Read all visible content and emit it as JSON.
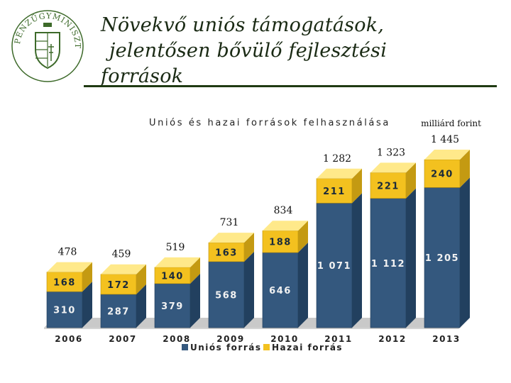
{
  "slide": {
    "title_lines": [
      "Növekvő uniós támogatások,",
      "jelentősen bővülő fejlesztési",
      "források"
    ],
    "logo_text": "PÉNZÜGYMINISZTÉRIUM"
  },
  "colors": {
    "title_rule": "#1f3a12",
    "logo_green": "#3d6a2a",
    "eu_front": "#34587e",
    "eu_light": "#6d8fb3",
    "domestic_front": "#f3c11f",
    "domestic_light": "#ffe98a"
  },
  "chart_data": {
    "type": "bar",
    "stacked": true,
    "title": "Uniós és hazai források felhasználása",
    "unit": "milliárd forint",
    "categories": [
      "2006",
      "2007",
      "2008",
      "2009",
      "2010",
      "2011",
      "2012",
      "2013"
    ],
    "series": [
      {
        "name": "Uniós forrás",
        "values": [
          310,
          287,
          379,
          568,
          646,
          1071,
          1112,
          1205
        ],
        "labels": [
          "310",
          "287",
          "379",
          "568",
          "646",
          "1 071",
          "1 112",
          "1 205"
        ]
      },
      {
        "name": "Hazai forrás",
        "values": [
          168,
          172,
          140,
          163,
          188,
          211,
          221,
          240
        ],
        "labels": [
          "168",
          "172",
          "140",
          "163",
          "188",
          "211",
          "221",
          "240"
        ]
      }
    ],
    "totals": [
      478,
      459,
      519,
      731,
      834,
      1282,
      1323,
      1445
    ],
    "total_labels": [
      "478",
      "459",
      "519",
      "731",
      "834",
      "1 282",
      "1 323",
      "1 445"
    ],
    "ylim": [
      0,
      1500
    ],
    "grid": false,
    "legend": "bottom"
  }
}
